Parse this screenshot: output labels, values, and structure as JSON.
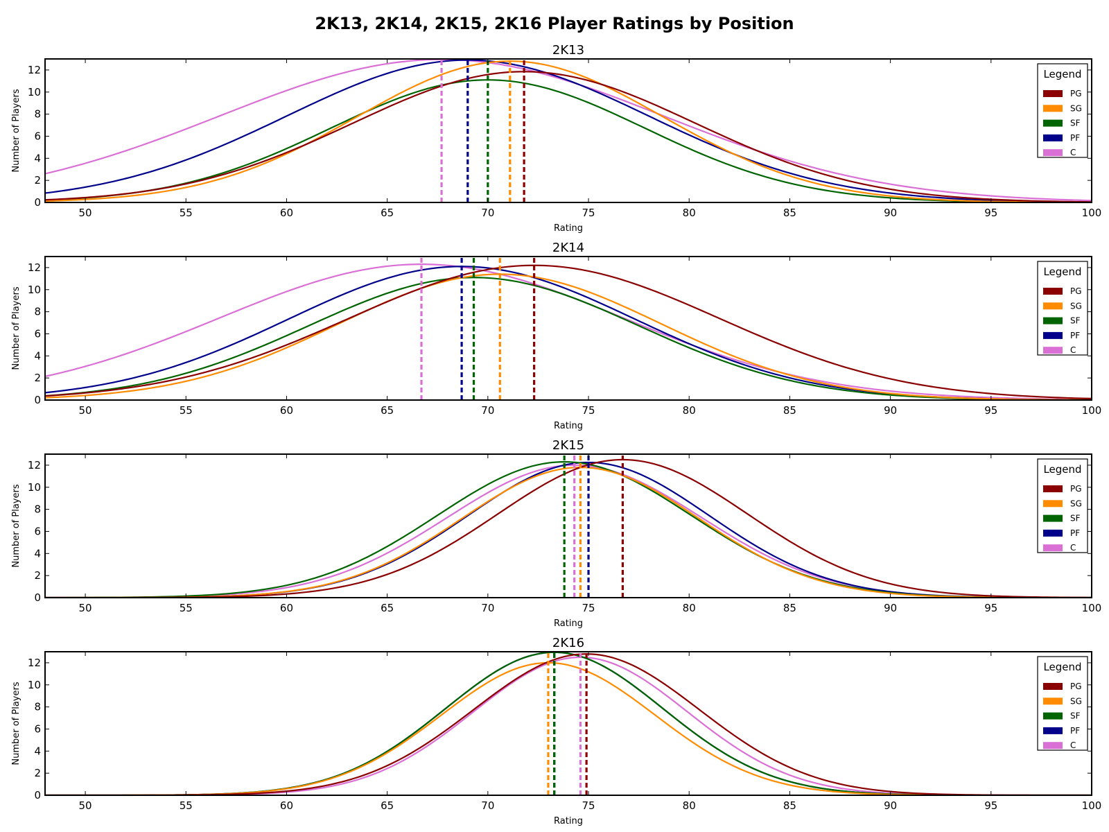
{
  "figure": {
    "title": "2K13, 2K14, 2K15, 2K16 Player Ratings by Position"
  },
  "chart_data": [
    {
      "type": "line",
      "title": "2K13",
      "xlabel": "Rating",
      "ylabel": "Number of Players",
      "xlim": [
        48,
        100
      ],
      "ylim": [
        0,
        13
      ],
      "xticks": [
        50,
        55,
        60,
        65,
        70,
        75,
        80,
        85,
        90,
        95,
        100
      ],
      "yticks": [
        0,
        2,
        4,
        6,
        8,
        10,
        12
      ],
      "legend": {
        "title": "Legend",
        "position": "top-right"
      },
      "series": [
        {
          "name": "PG",
          "color": "#8b0000",
          "peak": 11.85,
          "mean": 71.8,
          "sd": 8.5
        },
        {
          "name": "SG",
          "color": "#ff8c00",
          "peak": 12.8,
          "mean": 71.1,
          "sd": 7.6
        },
        {
          "name": "SF",
          "color": "#006400",
          "peak": 11.1,
          "mean": 70.0,
          "sd": 7.8
        },
        {
          "name": "PF",
          "color": "#00008b",
          "peak": 12.9,
          "mean": 69.0,
          "sd": 9.0
        },
        {
          "name": "C",
          "color": "#da70d6",
          "peak": 12.95,
          "mean": 67.7,
          "sd": 11.0
        }
      ]
    },
    {
      "type": "line",
      "title": "2K14",
      "xlabel": "Rating",
      "ylabel": "Number of Players",
      "xlim": [
        48,
        100
      ],
      "ylim": [
        0,
        13
      ],
      "xticks": [
        50,
        55,
        60,
        65,
        70,
        75,
        80,
        85,
        90,
        95,
        100
      ],
      "yticks": [
        0,
        2,
        4,
        6,
        8,
        10,
        12
      ],
      "legend": {
        "title": "Legend",
        "position": "top-right"
      },
      "series": [
        {
          "name": "PG",
          "color": "#8b0000",
          "peak": 12.2,
          "mean": 72.3,
          "sd": 9.2
        },
        {
          "name": "SG",
          "color": "#ff8c00",
          "peak": 11.4,
          "mean": 70.6,
          "sd": 8.0
        },
        {
          "name": "SF",
          "color": "#006400",
          "peak": 11.1,
          "mean": 69.3,
          "sd": 8.2
        },
        {
          "name": "PF",
          "color": "#00008b",
          "peak": 12.1,
          "mean": 68.7,
          "sd": 8.6
        },
        {
          "name": "C",
          "color": "#da70d6",
          "peak": 12.3,
          "mean": 66.7,
          "sd": 10.0
        }
      ]
    },
    {
      "type": "line",
      "title": "2K15",
      "xlabel": "Rating",
      "ylabel": "Number of Players",
      "xlim": [
        48,
        100
      ],
      "ylim": [
        0,
        13
      ],
      "xticks": [
        50,
        55,
        60,
        65,
        70,
        75,
        80,
        85,
        90,
        95,
        100
      ],
      "yticks": [
        0,
        2,
        4,
        6,
        8,
        10,
        12
      ],
      "legend": {
        "title": "Legend",
        "position": "top-right"
      },
      "series": [
        {
          "name": "PG",
          "color": "#8b0000",
          "peak": 12.5,
          "mean": 76.7,
          "sd": 6.2
        },
        {
          "name": "SG",
          "color": "#ff8c00",
          "peak": 11.8,
          "mean": 74.6,
          "sd": 5.9
        },
        {
          "name": "SF",
          "color": "#006400",
          "peak": 12.3,
          "mean": 73.8,
          "sd": 6.3
        },
        {
          "name": "PF",
          "color": "#00008b",
          "peak": 12.25,
          "mean": 75.0,
          "sd": 6.0
        },
        {
          "name": "C",
          "color": "#da70d6",
          "peak": 12.0,
          "mean": 74.3,
          "sd": 6.3
        }
      ]
    },
    {
      "type": "line",
      "title": "2K16",
      "xlabel": "Rating",
      "ylabel": "Number of Players",
      "xlim": [
        48,
        100
      ],
      "ylim": [
        0,
        13
      ],
      "xticks": [
        50,
        55,
        60,
        65,
        70,
        75,
        80,
        85,
        90,
        95,
        100
      ],
      "yticks": [
        0,
        2,
        4,
        6,
        8,
        10,
        12
      ],
      "legend": {
        "title": "Legend",
        "position": "top-right"
      },
      "series": [
        {
          "name": "PG",
          "color": "#8b0000",
          "peak": 12.8,
          "mean": 74.9,
          "sd": 5.6
        },
        {
          "name": "SG",
          "color": "#ff8c00",
          "peak": 12.0,
          "mean": 73.0,
          "sd": 5.3
        },
        {
          "name": "SF",
          "color": "#006400",
          "peak": 12.95,
          "mean": 73.3,
          "sd": 5.4
        },
        {
          "name": "PF",
          "color": "#00008b",
          "peak": 12.95,
          "mean": 73.3,
          "sd": 5.4
        },
        {
          "name": "C",
          "color": "#da70d6",
          "peak": 12.5,
          "mean": 74.6,
          "sd": 5.3
        }
      ]
    }
  ]
}
